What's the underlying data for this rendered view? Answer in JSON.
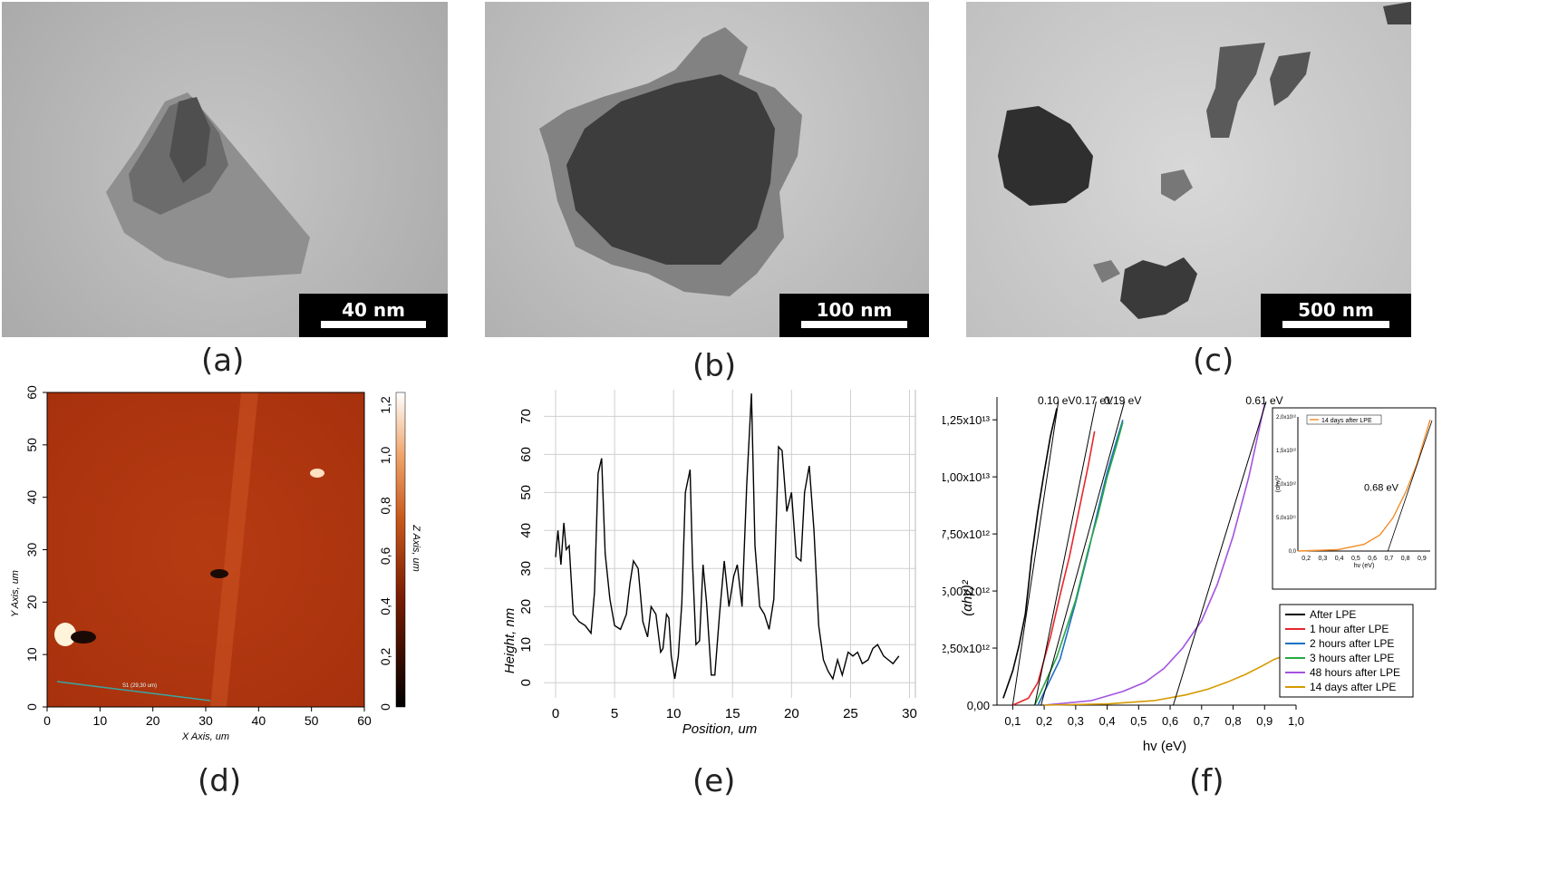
{
  "panels": {
    "a": {
      "label": "(a)",
      "scale": "40 nm"
    },
    "b": {
      "label": "(b)",
      "scale": "100 nm"
    },
    "c": {
      "label": "(c)",
      "scale": "500 nm"
    },
    "d": {
      "label": "(d)"
    },
    "e": {
      "label": "(e)"
    },
    "f": {
      "label": "(f)"
    }
  },
  "chart_data": [
    {
      "type": "heatmap",
      "xlabel": "X Axis, um",
      "ylabel": "Y Axis, um",
      "colorbar_label": "Z Axis, um",
      "xlim": [
        0,
        60
      ],
      "ylim": [
        0,
        60
      ],
      "x_ticks": [
        0,
        10,
        20,
        30,
        40,
        50,
        60
      ],
      "y_ticks": [
        0,
        10,
        20,
        30,
        40,
        50,
        60
      ],
      "z_ticks": [
        "0",
        "0,2",
        "0,4",
        "0,6",
        "0,8",
        "1,0",
        "1,2"
      ],
      "zlim": [
        0,
        1.25
      ],
      "annotation": "S1 (29,30 um)",
      "colors": {
        "base": "#b33a14",
        "dark": "#000000",
        "light": "#ffffff"
      }
    },
    {
      "type": "line",
      "xlabel": "Position, um",
      "ylabel": "Height, nm",
      "xlim": [
        -1,
        30.5
      ],
      "ylim": [
        -4,
        77
      ],
      "x_ticks": [
        0,
        5,
        10,
        15,
        20,
        25,
        30
      ],
      "y_ticks": [
        0,
        10,
        20,
        30,
        40,
        50,
        60,
        70
      ],
      "grid": true,
      "series": [
        {
          "x": [
            0,
            0.2,
            0.45,
            0.7,
            0.9,
            1.15,
            1.5,
            2,
            2.5,
            3,
            3.3,
            3.6,
            3.9,
            4.2,
            4.6,
            5,
            5.5,
            6,
            6.3,
            6.6,
            7,
            7.4,
            7.8,
            8.1,
            8.5,
            8.9,
            9.1,
            9.4,
            9.6,
            9.8,
            10.1,
            10.4,
            10.7,
            11,
            11.4,
            11.6,
            11.9,
            12.2,
            12.5,
            12.8,
            13.2,
            13.5,
            13.9,
            14.3,
            14.7,
            15.1,
            15.4,
            15.8,
            16.2,
            16.6,
            16.9,
            17.3,
            17.7,
            18.1,
            18.5,
            18.9,
            19.2,
            19.6,
            20,
            20.4,
            20.8,
            21.1,
            21.5,
            21.9,
            22.3,
            22.7,
            23.1,
            23.5,
            23.9,
            24.3,
            24.8,
            25.2,
            25.6,
            26,
            26.5,
            26.9,
            27.3,
            27.8,
            28.2,
            28.6,
            29.1
          ],
          "y": [
            33,
            40,
            31,
            42,
            35,
            36,
            18,
            16,
            15,
            13,
            24,
            55,
            59,
            34,
            22,
            15,
            14,
            18,
            26,
            32,
            30,
            16,
            12,
            20,
            18,
            8,
            9,
            18,
            17,
            7,
            1,
            7,
            21,
            50,
            56,
            32,
            10,
            11,
            31,
            21,
            2,
            2,
            18,
            32,
            20,
            28,
            31,
            20,
            52,
            76,
            36,
            20,
            18,
            14,
            22,
            62,
            61,
            45,
            50,
            33,
            32,
            50,
            57,
            40,
            15,
            6,
            3,
            1,
            6,
            2,
            8,
            7,
            8,
            5,
            6,
            9,
            10,
            7,
            6,
            5,
            7
          ]
        }
      ]
    },
    {
      "type": "line",
      "xlabel": "hv (eV)",
      "ylabel": "(αhν)²",
      "xlim": [
        0.05,
        1.0
      ],
      "ylim": [
        0,
        13500000000000.0
      ],
      "x_ticks": [
        "0,1",
        "0,2",
        "0,3",
        "0,4",
        "0,5",
        "0,6",
        "0,7",
        "0,8",
        "0,9",
        "1,0"
      ],
      "y_ticks": [
        "0,00",
        "2,50x10¹²",
        "5,00x10¹²",
        "7,50x10¹²",
        "1,00x10¹³",
        "1,25x10¹³"
      ],
      "annotations": [
        "0.10 eV",
        "0.17 eV",
        "0.19 eV",
        "0.61 eV"
      ],
      "legend": [
        "After LPE",
        "1 hour after LPE",
        "2 hours after LPE",
        "3 hours after LPE",
        "48 hours after LPE",
        "14 days after LPE"
      ],
      "legend_colors": [
        "#000000",
        "#e8262b",
        "#1f6fc5",
        "#27a844",
        "#a353e0",
        "#d49a00"
      ],
      "series": [
        {
          "name": "After LPE",
          "x": [
            0.07,
            0.1,
            0.12,
            0.14,
            0.15,
            0.16,
            0.18,
            0.2,
            0.22,
            0.24
          ],
          "y": [
            300000000000.0,
            1500000000000.0,
            2600000000000.0,
            4000000000000.0,
            5200000000000.0,
            6500000000000.0,
            8500000000000.0,
            10200000000000.0,
            11800000000000.0,
            13000000000000.0
          ]
        },
        {
          "name": "1 hour after LPE",
          "x": [
            0.1,
            0.15,
            0.18,
            0.2,
            0.22,
            0.25,
            0.28,
            0.31,
            0.34,
            0.36
          ],
          "y": [
            0,
            300000000000.0,
            1000000000000.0,
            2000000000000.0,
            3000000000000.0,
            4800000000000.0,
            6500000000000.0,
            8500000000000.0,
            10500000000000.0,
            12000000000000.0
          ]
        },
        {
          "name": "2 hours after LPE",
          "x": [
            0.18,
            0.25,
            0.3,
            0.34,
            0.37,
            0.4,
            0.43,
            0.45
          ],
          "y": [
            0,
            2000000000000.0,
            4500000000000.0,
            6700000000000.0,
            8500000000000.0,
            10200000000000.0,
            11600000000000.0,
            12500000000000.0
          ]
        },
        {
          "name": "3 hours after LPE",
          "x": [
            0.17,
            0.24,
            0.3,
            0.34,
            0.37,
            0.4,
            0.43,
            0.45
          ],
          "y": [
            0,
            2100000000000.0,
            4600000000000.0,
            6800000000000.0,
            8300000000000.0,
            10000000000000.0,
            11400000000000.0,
            12400000000000.0
          ]
        },
        {
          "name": "48 hours after LPE",
          "x": [
            0.2,
            0.35,
            0.45,
            0.52,
            0.58,
            0.64,
            0.7,
            0.75,
            0.8,
            0.85,
            0.9
          ],
          "y": [
            0,
            200000000000.0,
            600000000000.0,
            1000000000000.0,
            1600000000000.0,
            2500000000000.0,
            3700000000000.0,
            5300000000000.0,
            7400000000000.0,
            10000000000000.0,
            13200000000000.0
          ]
        },
        {
          "name": "14 days after LPE",
          "x": [
            0.2,
            0.4,
            0.55,
            0.65,
            0.72,
            0.78,
            0.84,
            0.89,
            0.93,
            0.95
          ],
          "y": [
            0,
            50000000000.0,
            200000000000.0,
            450000000000.0,
            700000000000.0,
            1000000000000.0,
            1350000000000.0,
            1700000000000.0,
            2000000000000.0,
            2100000000000.0
          ]
        }
      ],
      "inset": {
        "legend": "14 days after LPE",
        "annotation": "0.68 eV",
        "xlabel": "hv (eV)",
        "ylabel": "(αhν)²",
        "x_ticks": [
          "0,2",
          "0,3",
          "0,4",
          "0,5",
          "0,6",
          "0,7",
          "0,8",
          "0,9"
        ],
        "y_ticks": [
          "0,0",
          "5,0x10¹¹",
          "1,0x10¹²",
          "1,5x10¹²",
          "2,0x10¹²"
        ]
      }
    }
  ]
}
